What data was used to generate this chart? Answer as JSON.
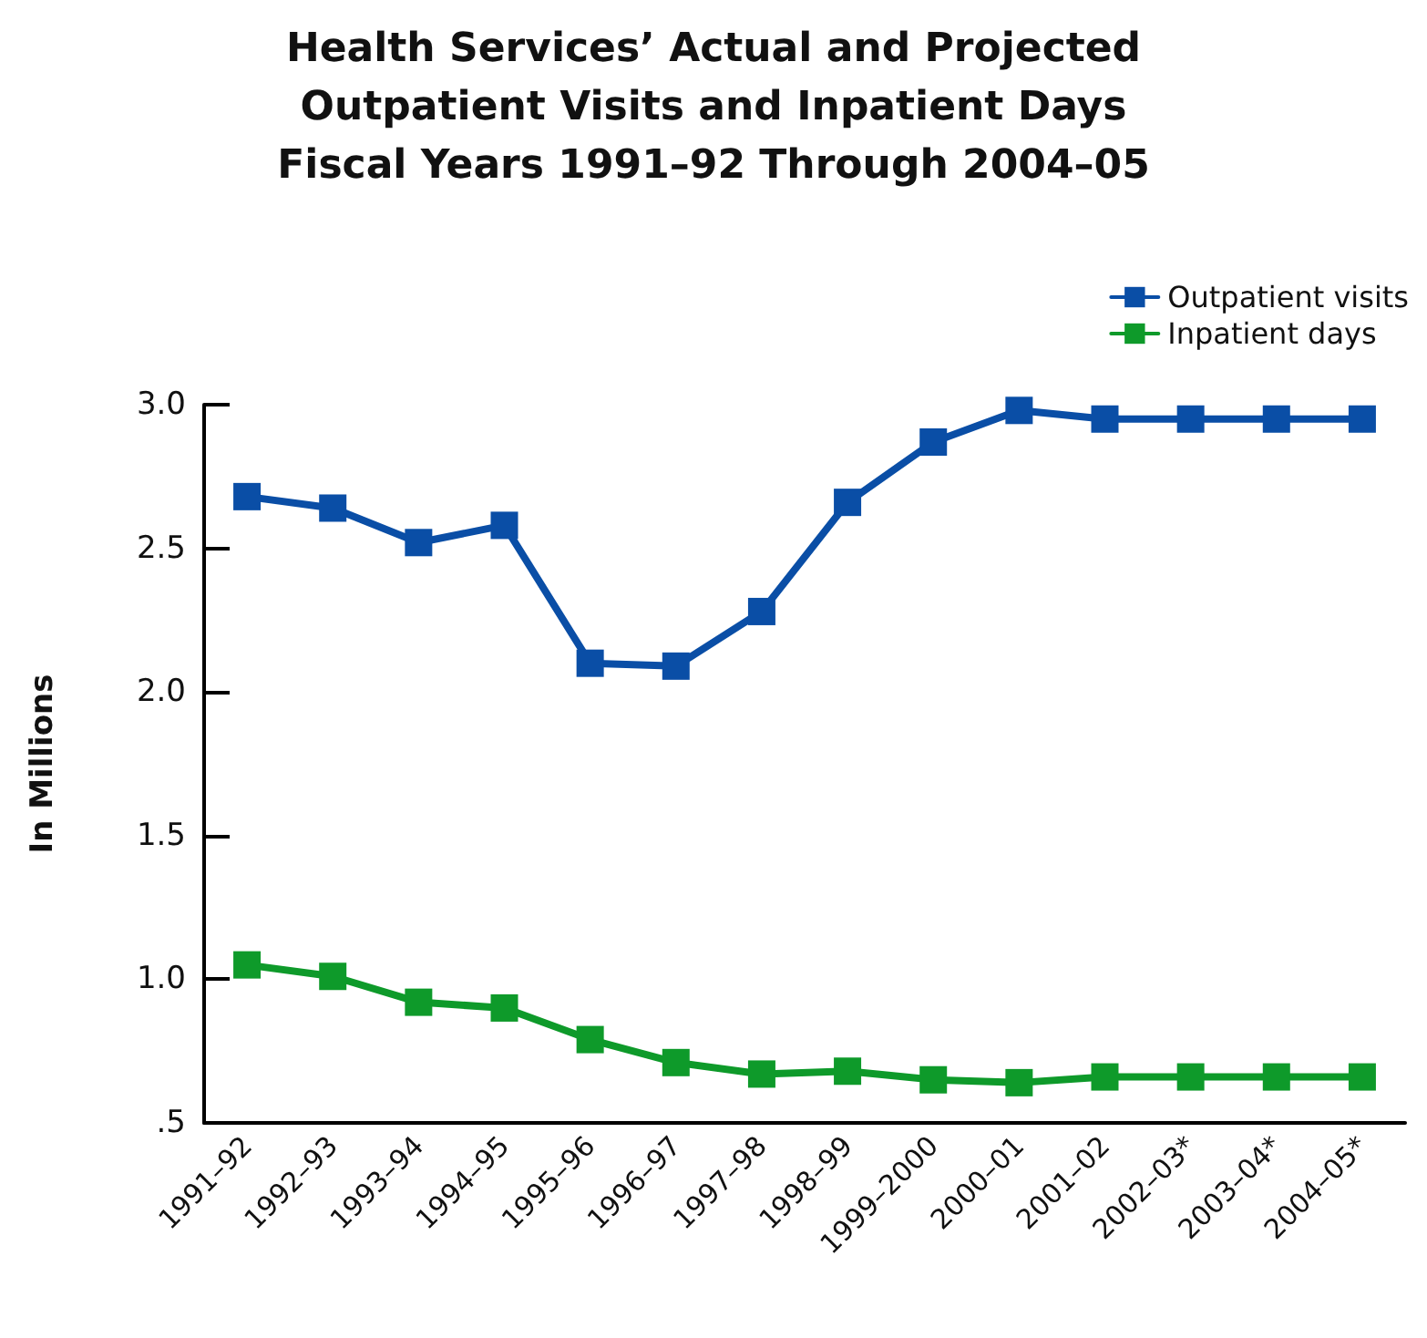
{
  "chart_data": {
    "type": "line",
    "title": "Health Services’ Actual and Projected\nOutpatient Visits and Inpatient Days\nFiscal Years 1991–92 Through 2004–05",
    "ylabel": "In Millions",
    "categories": [
      "1991–92",
      "1992–93",
      "1993–94",
      "1994–95",
      "1995–96",
      "1996–97",
      "1997–98",
      "1998–99",
      "1999–2000",
      "2000–01",
      "2001–02",
      "2002–03*",
      "2003–04*",
      "2004–05*"
    ],
    "series": [
      {
        "name": "Outpatient visits",
        "color": "#0a4ea6",
        "values": [
          2.68,
          2.64,
          2.52,
          2.58,
          2.1,
          2.09,
          2.28,
          2.66,
          2.87,
          2.98,
          2.95,
          2.95,
          2.95,
          2.95
        ]
      },
      {
        "name": "Inpatient days",
        "color": "#0e9a2a",
        "values": [
          1.05,
          1.01,
          0.92,
          0.9,
          0.79,
          0.71,
          0.67,
          0.68,
          0.65,
          0.64,
          0.66,
          0.66,
          0.66,
          0.66
        ]
      }
    ],
    "ylim": [
      0.5,
      3.0
    ],
    "yticks": [
      {
        "value": 0.5,
        "label": ".5"
      },
      {
        "value": 1,
        "label": "1.0"
      },
      {
        "value": 1.5,
        "label": "1.5"
      },
      {
        "value": 2,
        "label": "2.0"
      },
      {
        "value": 2.5,
        "label": "2.5"
      },
      {
        "value": 3,
        "label": "3.0"
      }
    ],
    "marker": "square",
    "line_style": "solid",
    "grid": false,
    "legend": "top right"
  }
}
